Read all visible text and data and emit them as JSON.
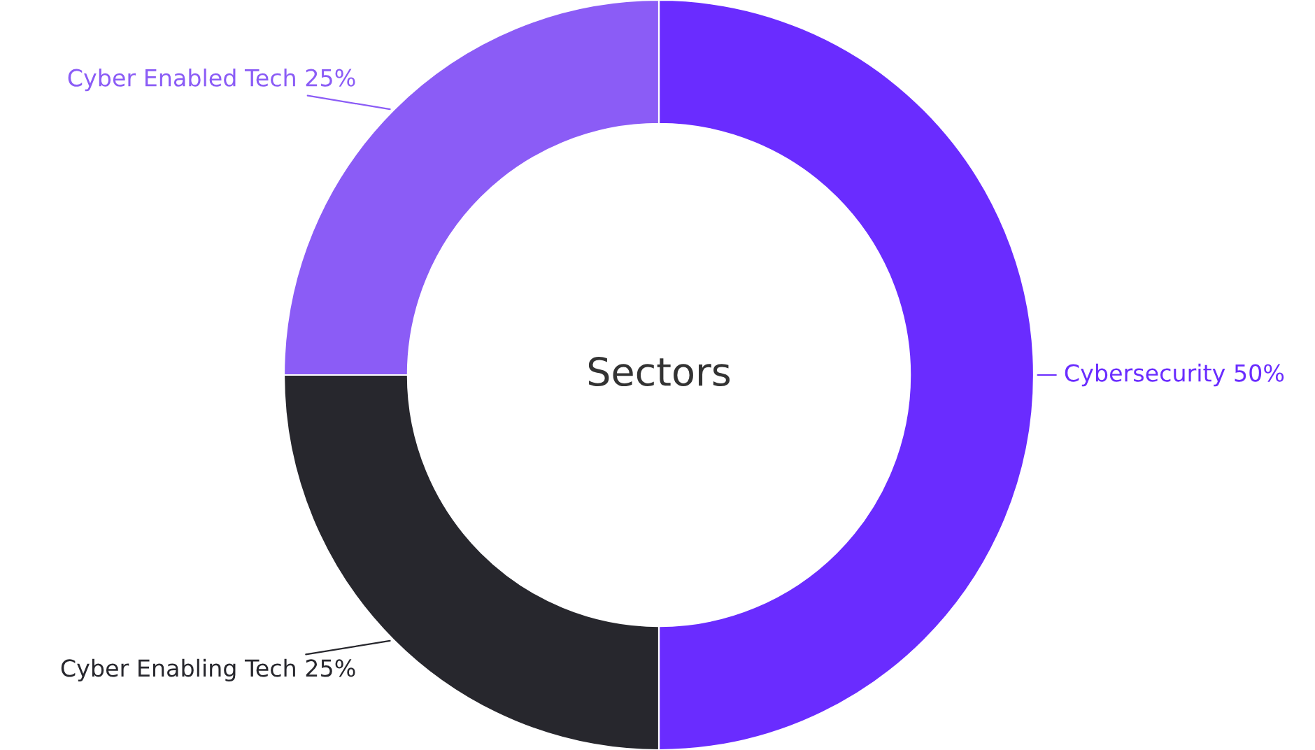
{
  "chart_data": {
    "type": "donut",
    "title": "Sectors",
    "categories": [
      "Cybersecurity",
      "Cyber Enabling Tech",
      "Cyber Enabled Tech"
    ],
    "values": [
      50,
      25,
      25
    ],
    "value_labels": [
      "50%",
      "25%",
      "25%"
    ],
    "colors": [
      "#6a2cff",
      "#27272d",
      "#8b5cf6"
    ]
  }
}
